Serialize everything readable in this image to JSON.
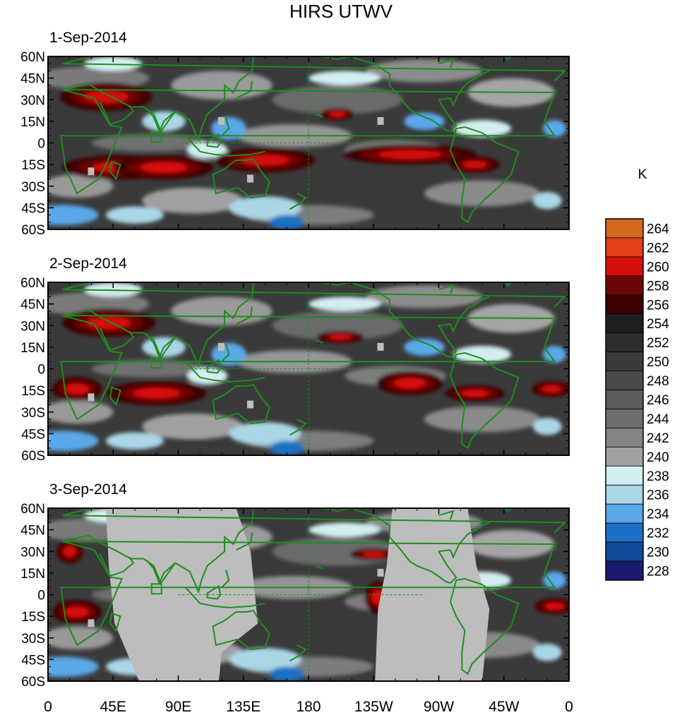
{
  "title": "HIRS UTWV",
  "colorbar": {
    "unit": "K",
    "levels": [
      264,
      262,
      260,
      258,
      256,
      254,
      252,
      250,
      248,
      246,
      244,
      242,
      240,
      238,
      236,
      234,
      232,
      230,
      228
    ],
    "colors": [
      "#d2691e",
      "#e3401a",
      "#d7100e",
      "#6e0606",
      "#3c0000",
      "#1e1e1e",
      "#2d2d2d",
      "#3b3b3b",
      "#4b4b4b",
      "#5c5c5c",
      "#6f6f6f",
      "#848484",
      "#a2a2a2",
      "#d3eef0",
      "#aad6e6",
      "#5aa8e8",
      "#1c6fc4",
      "#114a96",
      "#1a1a6e"
    ]
  },
  "axes": {
    "y_ticks": [
      "60N",
      "45N",
      "30N",
      "15N",
      "0",
      "15S",
      "30S",
      "45S",
      "60S"
    ],
    "x_ticks": [
      "0",
      "45E",
      "90E",
      "135E",
      "180",
      "135W",
      "90W",
      "45W",
      "0"
    ]
  },
  "panels": [
    {
      "title": "1-Sep-2014"
    },
    {
      "title": "2-Sep-2014"
    },
    {
      "title": "3-Sep-2014"
    }
  ],
  "colors": {
    "coast": "#1e8c1e",
    "missing": "#bdbdbd"
  }
}
